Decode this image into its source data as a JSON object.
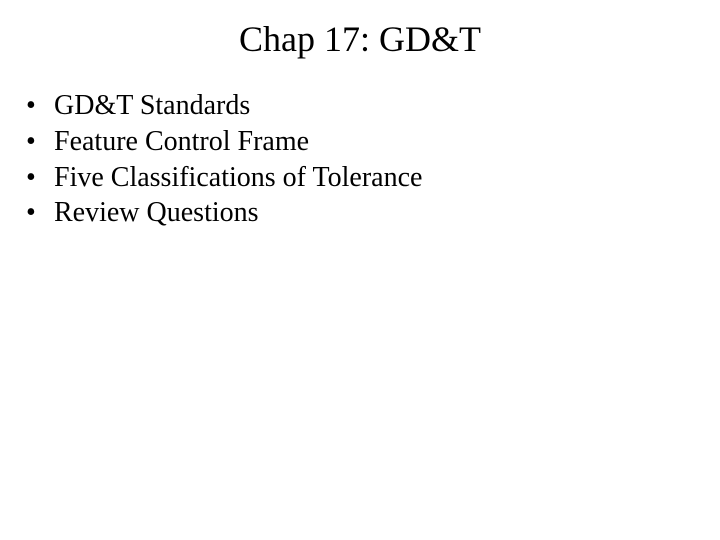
{
  "slide": {
    "title": "Chap 17: GD&T",
    "title_fontsize": 36,
    "body_fontsize": 28,
    "font_family": "Times New Roman",
    "background_color": "#ffffff",
    "text_color": "#000000",
    "bullet_glyph": "•",
    "bullets": [
      {
        "text": "GD&T Standards"
      },
      {
        "text": "Feature Control Frame"
      },
      {
        "text": "Five Classifications of Tolerance"
      },
      {
        "text": "Review Questions"
      }
    ]
  }
}
